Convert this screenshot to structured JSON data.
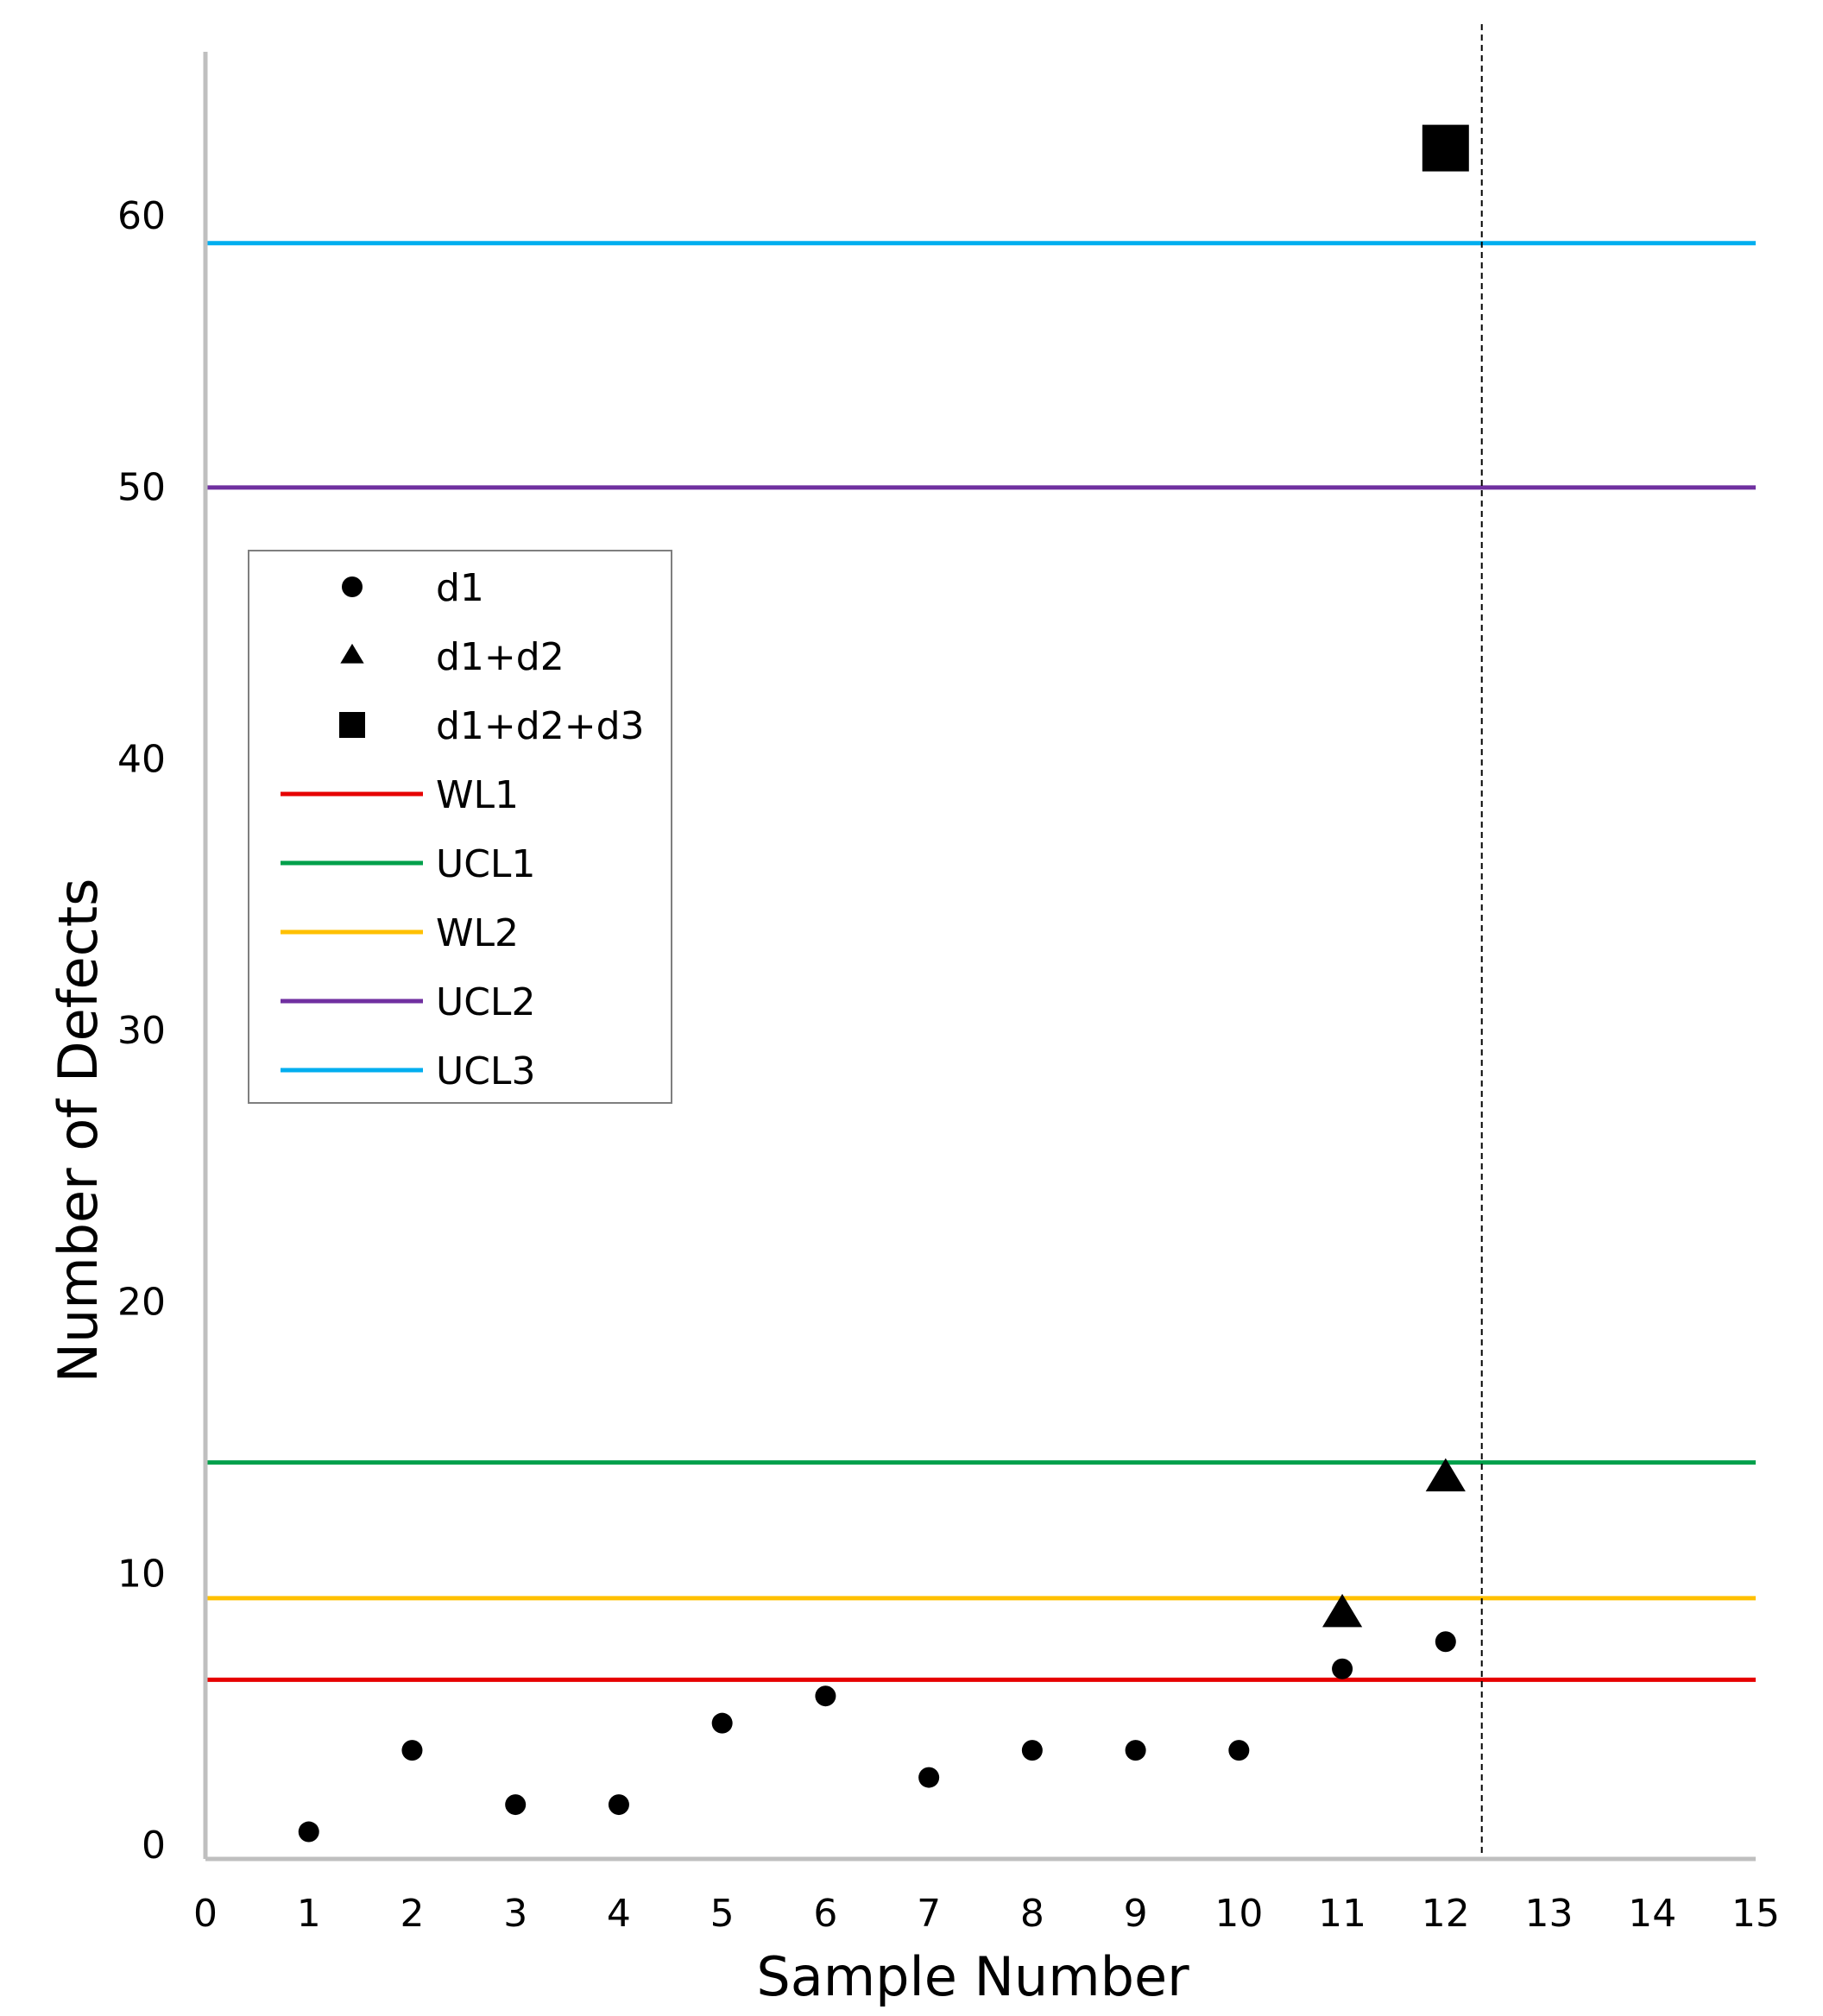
{
  "chart_data": {
    "type": "scatter",
    "title": "",
    "xlabel": "Sample Number",
    "ylabel": "Number of Defects",
    "xlim": [
      0,
      15
    ],
    "ylim": [
      0,
      66
    ],
    "x_ticks": [
      0,
      1,
      2,
      3,
      4,
      5,
      6,
      7,
      8,
      9,
      10,
      11,
      12,
      13,
      14,
      15
    ],
    "y_ticks": [
      0,
      10,
      20,
      30,
      40,
      50,
      60
    ],
    "grid": false,
    "legend_position": "upper-left",
    "series": [
      {
        "name": "d1",
        "marker": "circle",
        "color": "#000000",
        "points": [
          [
            1,
            1
          ],
          [
            2,
            4
          ],
          [
            3,
            2
          ],
          [
            4,
            2
          ],
          [
            5,
            5
          ],
          [
            6,
            6
          ],
          [
            7,
            3
          ],
          [
            8,
            4
          ],
          [
            9,
            4
          ],
          [
            10,
            4
          ],
          [
            11,
            7
          ],
          [
            12,
            8
          ]
        ]
      },
      {
        "name": "d1+d2",
        "marker": "triangle",
        "color": "#000000",
        "points": [
          [
            11,
            9
          ],
          [
            12,
            14
          ]
        ]
      },
      {
        "name": "d1+d2+d3",
        "marker": "square",
        "color": "#000000",
        "points": [
          [
            12,
            63
          ]
        ]
      }
    ],
    "reference_lines": [
      {
        "name": "WL1",
        "y": 6.6,
        "color": "#e60000"
      },
      {
        "name": "UCL1",
        "y": 14.6,
        "color": "#00a04b"
      },
      {
        "name": "WL2",
        "y": 9.6,
        "color": "#ffc000"
      },
      {
        "name": "UCL2",
        "y": 50.5,
        "color": "#7030a0"
      },
      {
        "name": "UCL3",
        "y": 59.5,
        "color": "#00aeef"
      }
    ],
    "vertical_marker": {
      "x": 12.35,
      "style": "dashed",
      "color": "#000000"
    }
  }
}
